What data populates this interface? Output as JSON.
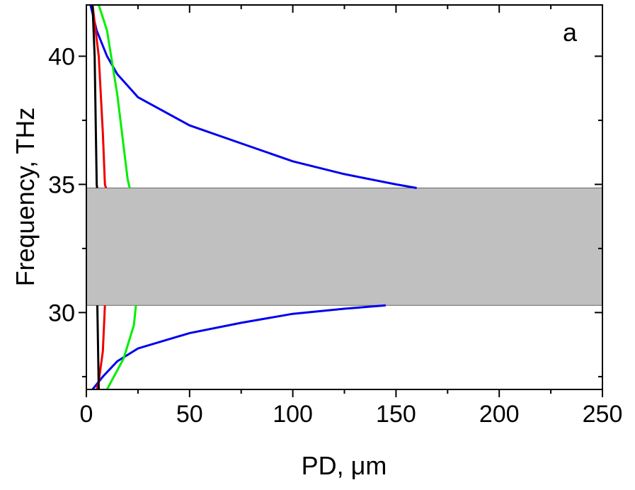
{
  "chart_data": {
    "type": "line",
    "annotation": "a",
    "x_label": "PD, μm",
    "y_label": "Frequency, THz",
    "xlim": [
      0,
      250
    ],
    "ylim": [
      27,
      42
    ],
    "xticks": [
      0,
      50,
      100,
      150,
      200,
      250
    ],
    "yticks": [
      30,
      35,
      40
    ],
    "xminorticks": [
      25,
      75,
      125,
      175,
      225
    ],
    "yminorticks": [
      27.5,
      32.5,
      37.5
    ],
    "band": {
      "ylim": [
        30.28,
        34.86
      ],
      "color": "#c0c0c0"
    },
    "series": [
      {
        "color": "#0000ee",
        "x": [
          2,
          5,
          10,
          15,
          25,
          50,
          75,
          100,
          125,
          150,
          160,
          null,
          145,
          125,
          100,
          75,
          50,
          25,
          15,
          8,
          3
        ],
        "values": [
          42,
          41,
          40,
          39.3,
          38.4,
          37.3,
          36.6,
          35.9,
          35.4,
          35.0,
          34.86,
          null,
          30.28,
          30.15,
          29.95,
          29.6,
          29.2,
          28.6,
          28.1,
          27.5,
          27
        ]
      },
      {
        "color": "#00ee00",
        "x": [
          6,
          10,
          15,
          20,
          21,
          null,
          24,
          23,
          18,
          12,
          10
        ],
        "values": [
          42,
          41,
          38.5,
          35.2,
          34.86,
          null,
          30.28,
          29.5,
          28.2,
          27.3,
          27
        ]
      },
      {
        "color": "#ee0000",
        "x": [
          3,
          6,
          8,
          9,
          9.5,
          null,
          9,
          8,
          6,
          5
        ],
        "values": [
          42,
          40,
          37,
          35,
          34.86,
          null,
          30.28,
          28.5,
          27.3,
          27
        ]
      },
      {
        "color": "#000000",
        "x": [
          3,
          4,
          5,
          5.2,
          null,
          5.3,
          6
        ],
        "values": [
          42,
          40,
          35,
          34.86,
          null,
          30.28,
          27
        ]
      }
    ]
  }
}
